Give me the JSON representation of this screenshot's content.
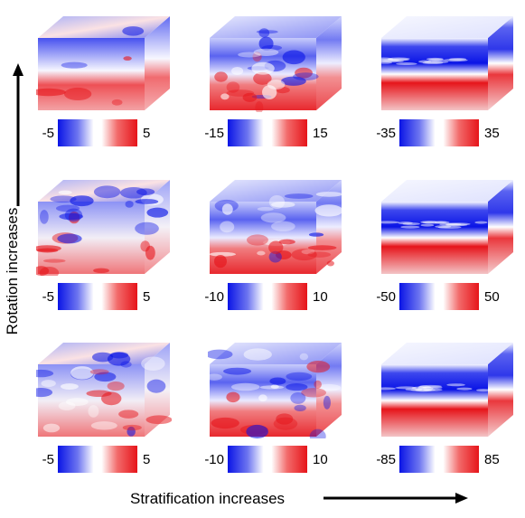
{
  "y_axis_label": "Rotation increases",
  "x_axis_label": "Stratification increases",
  "panels": [
    {
      "row": 1,
      "col": 1,
      "pattern": "blob",
      "cbar": {
        "min": "-5",
        "max": "5"
      }
    },
    {
      "row": 1,
      "col": 2,
      "pattern": "turbulent",
      "cbar": {
        "min": "-15",
        "max": "15"
      }
    },
    {
      "row": 1,
      "col": 3,
      "pattern": "layered",
      "cbar": {
        "min": "-35",
        "max": "35"
      }
    },
    {
      "row": 2,
      "col": 1,
      "pattern": "patchy",
      "cbar": {
        "min": "-5",
        "max": "5"
      }
    },
    {
      "row": 2,
      "col": 2,
      "pattern": "turbulent",
      "cbar": {
        "min": "-10",
        "max": "10"
      }
    },
    {
      "row": 2,
      "col": 3,
      "pattern": "layered",
      "cbar": {
        "min": "-50",
        "max": "50"
      }
    },
    {
      "row": 3,
      "col": 1,
      "pattern": "patchy",
      "cbar": {
        "min": "-5",
        "max": "5"
      }
    },
    {
      "row": 3,
      "col": 2,
      "pattern": "turbulent",
      "cbar": {
        "min": "-10",
        "max": "10"
      }
    },
    {
      "row": 3,
      "col": 3,
      "pattern": "layered",
      "cbar": {
        "min": "-85",
        "max": "85"
      }
    }
  ],
  "colors": {
    "negative": "#0a14e6",
    "neutral": "#ffffff",
    "positive": "#e6141a"
  }
}
